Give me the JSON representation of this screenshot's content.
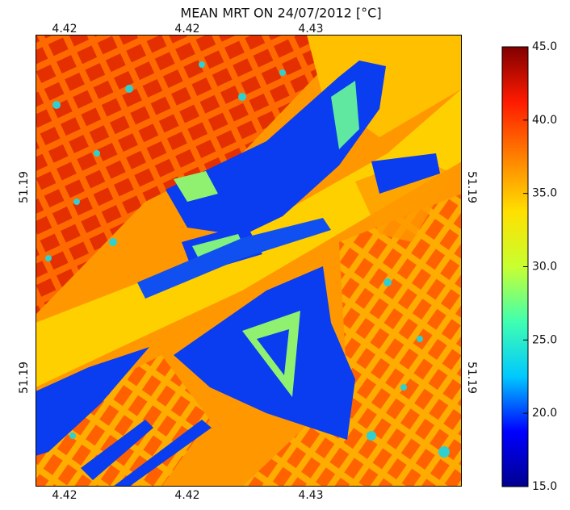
{
  "chart_data": {
    "type": "heatmap",
    "title": "MEAN MRT ON 24/07/2012 [°C]",
    "x_tick_labels": [
      "4.42",
      "4.42",
      "4.43"
    ],
    "y_tick_labels": [
      "51.19",
      "51.19"
    ],
    "colorbar": {
      "lim": [
        15,
        45
      ],
      "ticks": [
        {
          "value": 15,
          "label": "15.0"
        },
        {
          "value": 20,
          "label": "20.0"
        },
        {
          "value": 25,
          "label": "25.0"
        },
        {
          "value": 30,
          "label": "30.0"
        },
        {
          "value": 35,
          "label": "35.0"
        },
        {
          "value": 40,
          "label": "40.0"
        },
        {
          "value": 45,
          "label": "45.0"
        }
      ],
      "colors": [
        "#00008f",
        "#0000ff",
        "#00c8ff",
        "#40ffb0",
        "#c8ff30",
        "#ffe000",
        "#ff8000",
        "#ff1a00",
        "#800000"
      ]
    }
  }
}
